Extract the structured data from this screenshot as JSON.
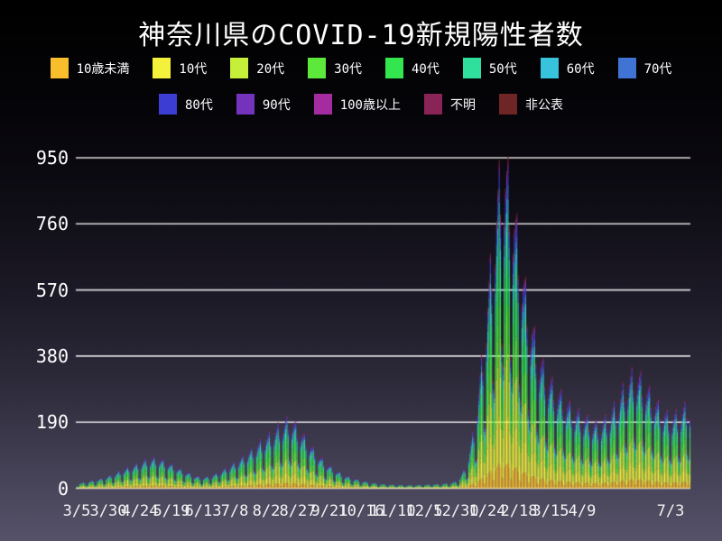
{
  "page": {
    "title": "神奈川県のCOVID-19新規陽性者数"
  },
  "colors": {
    "background_top": "#000000",
    "background_bottom": "#565269",
    "gridline": "#ffffff",
    "text": "#ffffff"
  },
  "chart_data": {
    "type": "bar",
    "stacked": true,
    "title": "神奈川県のCOVID-19新規陽性者数",
    "ylabel": "",
    "xlabel": "",
    "grid": true,
    "legend_position": "top",
    "y_ticks": [
      0,
      190,
      380,
      570,
      760,
      950
    ],
    "ylim": [
      0,
      1040
    ],
    "x_tick_labels": [
      "3/5",
      "3/30",
      "4/24",
      "5/19",
      "6/13",
      "7/8",
      "8/2",
      "8/27",
      "9/21",
      "10/16",
      "11/10",
      "12/5",
      "12/30",
      "1/24",
      "2/18",
      "3/15",
      "4/9",
      "7/3"
    ],
    "x_tick_days": [
      0,
      25,
      50,
      75,
      100,
      125,
      150,
      175,
      200,
      225,
      250,
      275,
      300,
      325,
      350,
      375,
      400,
      485
    ],
    "total_days": 486,
    "series": [
      {
        "name": "10歳未満",
        "color": "#F9BE2B",
        "fraction": 0.075
      },
      {
        "name": "10代",
        "color": "#F4F13A",
        "fraction": 0.145
      },
      {
        "name": "20代",
        "color": "#C6EF39",
        "fraction": 0.185
      },
      {
        "name": "30代",
        "color": "#5DE93B",
        "fraction": 0.145
      },
      {
        "name": "40代",
        "color": "#33E54F",
        "fraction": 0.145
      },
      {
        "name": "50代",
        "color": "#2FDF9C",
        "fraction": 0.115
      },
      {
        "name": "60代",
        "color": "#36C3DB",
        "fraction": 0.06
      },
      {
        "name": "70代",
        "color": "#3F74D5",
        "fraction": 0.045
      },
      {
        "name": "80代",
        "color": "#3C3DD3",
        "fraction": 0.035
      },
      {
        "name": "90代",
        "color": "#7433BD",
        "fraction": 0.02
      },
      {
        "name": "100歳以上",
        "color": "#A52BA0",
        "fraction": 0.008
      },
      {
        "name": "不明",
        "color": "#8A2457",
        "fraction": 0.012
      },
      {
        "name": "非公表",
        "color": "#6F2426",
        "fraction": 0.01
      }
    ],
    "weekly_envelope_totals": [
      12,
      16,
      20,
      26,
      34,
      44,
      54,
      62,
      72,
      75,
      66,
      55,
      44,
      34,
      27,
      30,
      40,
      52,
      66,
      82,
      100,
      120,
      135,
      155,
      170,
      148,
      118,
      88,
      65,
      48,
      35,
      26,
      20,
      15,
      12,
      10,
      9,
      8,
      8,
      9,
      10,
      11,
      13,
      18,
      55,
      160,
      360,
      600,
      800,
      730,
      580,
      440,
      340,
      280,
      245,
      220,
      195,
      180,
      165,
      155,
      175,
      210,
      255,
      285,
      260,
      225,
      195,
      175,
      185,
      205
    ],
    "weekday_multipliers": [
      0.52,
      0.45,
      0.98,
      1.12,
      1.2,
      1.27,
      1.02
    ],
    "peak_value_approx": 1000
  }
}
